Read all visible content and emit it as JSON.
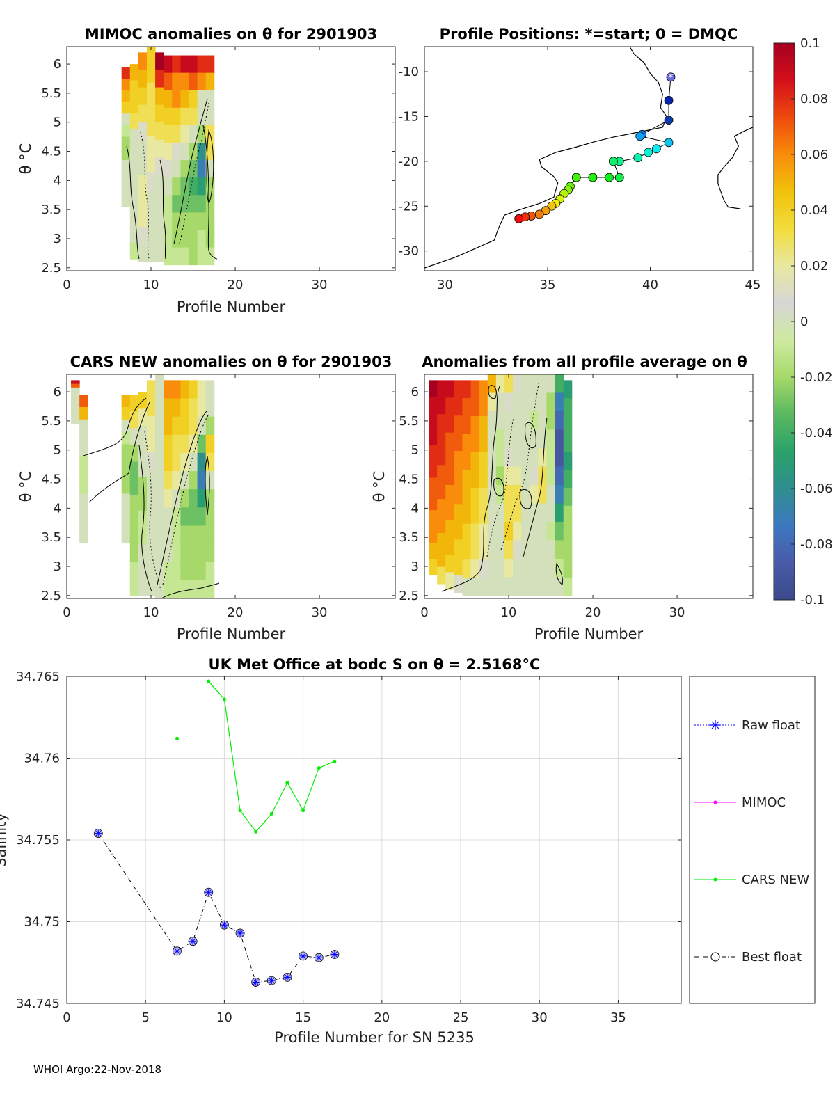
{
  "footer": "WHOI Argo:22-Nov-2018",
  "colorbar": {
    "ticks": [
      "0.1",
      "0.08",
      "0.06",
      "0.04",
      "0.02",
      "0",
      "-0.02",
      "-0.04",
      "-0.06",
      "-0.08",
      "-0.1"
    ],
    "stops": [
      "#a50021",
      "#d30f1a",
      "#ee4a0d",
      "#f98c0a",
      "#f0c20a",
      "#f2dc3c",
      "#e8e8a0",
      "#d6d6d6",
      "#cfeaa0",
      "#a6d96a",
      "#5ab860",
      "#2aa26a",
      "#2e8e8e",
      "#3d78c0",
      "#4a5aa8",
      "#3a4a8a"
    ]
  },
  "chart_data": [
    {
      "id": "mimoc",
      "type": "heatmap",
      "title": "MIMOC anomalies on θ  for 2901903",
      "xlabel": "Profile Number",
      "ylabel": "θ °C",
      "xlim": [
        0,
        39
      ],
      "ylim": [
        2.45,
        6.3
      ],
      "xticks": [
        "0",
        "10",
        "20",
        "30"
      ],
      "yticks": [
        "6",
        "5.5",
        "5",
        "4.5",
        "4",
        "3.5",
        "3",
        "2.5"
      ],
      "profiles": [
        7,
        8,
        9,
        10,
        11,
        12,
        13,
        14,
        15,
        16,
        17
      ],
      "theta_top": [
        5.95,
        6.0,
        6.2,
        6.3,
        6.2,
        6.15,
        6.15,
        6.15,
        6.15,
        6.15,
        6.15
      ],
      "theta_bottom": [
        3.55,
        2.65,
        2.6,
        2.6,
        2.6,
        2.55,
        2.55,
        2.55,
        2.55,
        2.55,
        2.55
      ],
      "anomaly_rows_top_to_bottom": [
        [
          0.08,
          0.05,
          0.06,
          0.04,
          0.1,
          0.09,
          0.08,
          0.09,
          0.09,
          0.08,
          0.08
        ],
        [
          0.06,
          0.04,
          0.05,
          0.04,
          0.08,
          0.07,
          0.06,
          0.06,
          0.07,
          0.06,
          0.05
        ],
        [
          0.05,
          0.04,
          0.04,
          0.03,
          0.05,
          0.05,
          0.06,
          0.05,
          0.04,
          0.0,
          0.0
        ],
        [
          0.04,
          0.03,
          0.03,
          0.03,
          0.04,
          0.04,
          0.04,
          0.03,
          0.03,
          0.0,
          0.0
        ],
        [
          0.0,
          0.0,
          0.01,
          0.03,
          0.03,
          0.03,
          0.03,
          0.02,
          0.0,
          -0.02,
          0.03
        ],
        [
          -0.01,
          0.0,
          0.0,
          0.02,
          0.02,
          0.02,
          0.01,
          0.0,
          -0.02,
          -0.06,
          0.03
        ],
        [
          -0.02,
          0.0,
          0.0,
          0.02,
          0.01,
          0.01,
          0.0,
          -0.02,
          -0.03,
          -0.07,
          0.0
        ],
        [
          -0.02,
          0.0,
          0.02,
          0.01,
          0.0,
          0.0,
          -0.02,
          -0.03,
          -0.04,
          -0.05,
          -0.02
        ],
        [
          0.0,
          0.0,
          0.02,
          0.0,
          0.0,
          -0.01,
          -0.03,
          -0.03,
          -0.03,
          -0.03,
          -0.02
        ],
        [
          0.0,
          0.0,
          0.02,
          0.0,
          0.0,
          -0.01,
          -0.02,
          -0.02,
          -0.02,
          -0.02,
          -0.02
        ],
        [
          0.0,
          0.0,
          0.01,
          0.0,
          0.0,
          -0.01,
          -0.02,
          -0.02,
          -0.02,
          -0.01,
          -0.02
        ],
        [
          0.0,
          -0.01,
          0.0,
          0.0,
          0.0,
          -0.01,
          -0.01,
          -0.01,
          -0.02,
          -0.01,
          -0.01
        ]
      ]
    },
    {
      "id": "positions",
      "type": "scatter",
      "title": "Profile Positions: *=start; 0 = DMQC",
      "xlim": [
        29,
        45
      ],
      "ylim": [
        -32.2,
        -7.2
      ],
      "xticks": [
        "30",
        "35",
        "40",
        "45"
      ],
      "yticks": [
        "-10",
        "-15",
        "-20",
        "-25",
        "-30"
      ],
      "lon": [
        41.0,
        40.9,
        40.9,
        39.6,
        39.5,
        40.9,
        40.3,
        39.9,
        39.4,
        38.5,
        38.2,
        38.5,
        38.0,
        37.2,
        36.4,
        36.1,
        36.0,
        35.8,
        35.6,
        35.4,
        35.2,
        34.9,
        34.6,
        34.2,
        33.9,
        33.6
      ],
      "lat": [
        -10.6,
        -13.2,
        -15.4,
        -17.0,
        -17.2,
        -17.9,
        -18.6,
        -19.0,
        -19.6,
        -20.0,
        -20.0,
        -21.8,
        -21.8,
        -21.8,
        -21.8,
        -22.8,
        -23.2,
        -23.6,
        -24.2,
        -24.7,
        -25.0,
        -25.5,
        -25.9,
        -26.1,
        -26.2,
        -26.4
      ],
      "coastlines": [
        [
          [
            29,
            -31.9
          ],
          [
            30.5,
            -30.7
          ],
          [
            31.5,
            -29.7
          ],
          [
            32.4,
            -28.8
          ],
          [
            32.6,
            -27.5
          ],
          [
            32.9,
            -26.0
          ],
          [
            33.5,
            -25.5
          ],
          [
            34.6,
            -24.7
          ],
          [
            35.3,
            -24.0
          ],
          [
            35.5,
            -22.4
          ],
          [
            35.3,
            -21.7
          ],
          [
            34.7,
            -20.6
          ],
          [
            34.6,
            -19.8
          ],
          [
            35.4,
            -19.0
          ],
          [
            36.4,
            -18.4
          ],
          [
            37.3,
            -17.8
          ],
          [
            38.2,
            -17.3
          ],
          [
            39.3,
            -16.8
          ],
          [
            40.6,
            -16.2
          ],
          [
            40.8,
            -15.0
          ],
          [
            40.5,
            -14.0
          ],
          [
            40.6,
            -12.5
          ],
          [
            40.4,
            -11.2
          ],
          [
            40.0,
            -10.2
          ],
          [
            39.7,
            -9.0
          ],
          [
            39.2,
            -8.0
          ],
          [
            39.0,
            -7.2
          ]
        ],
        [
          [
            44.4,
            -25.3
          ],
          [
            43.8,
            -25.1
          ],
          [
            43.6,
            -24.4
          ],
          [
            43.3,
            -22.5
          ],
          [
            43.3,
            -21.5
          ],
          [
            43.6,
            -20.6
          ],
          [
            44.0,
            -19.6
          ],
          [
            44.3,
            -18.3
          ],
          [
            44.1,
            -17.2
          ],
          [
            44.6,
            -16.6
          ],
          [
            45.0,
            -16.2
          ]
        ]
      ]
    },
    {
      "id": "cars",
      "type": "heatmap",
      "title": "CARS NEW anomalies on θ for 2901903",
      "xlabel": "Profile Number",
      "ylabel": "θ °C",
      "xlim": [
        0,
        39
      ],
      "ylim": [
        2.45,
        6.3
      ],
      "xticks": [
        "0",
        "10",
        "20",
        "30"
      ],
      "yticks": [
        "6",
        "5.5",
        "5",
        "4.5",
        "4",
        "3.5",
        "3",
        "2.5"
      ],
      "profiles": [
        1,
        2,
        7,
        8,
        9,
        10,
        11,
        12,
        13,
        14,
        15,
        16,
        17
      ],
      "theta_top": [
        6.2,
        5.95,
        5.95,
        5.95,
        6.0,
        6.2,
        6.3,
        6.2,
        6.2,
        6.2,
        6.2,
        6.2,
        6.2
      ],
      "theta_bottom": [
        5.45,
        3.4,
        3.4,
        2.5,
        2.5,
        2.5,
        2.45,
        2.45,
        2.45,
        2.45,
        2.45,
        2.45,
        2.45
      ],
      "anomaly_rows_top_to_bottom": [
        [
          0.09,
          0.07,
          0.05,
          0.04,
          0.04,
          0.03,
          0.0,
          0.06,
          0.06,
          0.05,
          0.04,
          0.02,
          0.0
        ],
        [
          0.07,
          0.05,
          0.04,
          0.03,
          0.02,
          0.03,
          0.0,
          0.05,
          0.05,
          0.04,
          0.03,
          0.02,
          0.0
        ],
        [
          0.0,
          0.0,
          0.0,
          0.0,
          0.0,
          0.02,
          0.0,
          0.05,
          0.04,
          0.04,
          0.03,
          0.0,
          -0.02
        ],
        [
          0.0,
          0.0,
          -0.01,
          -0.02,
          0.0,
          0.02,
          0.0,
          0.04,
          0.03,
          0.03,
          0.02,
          -0.03,
          0.04
        ],
        [
          0.0,
          0.0,
          -0.02,
          -0.03,
          0.0,
          0.01,
          0.0,
          0.04,
          0.03,
          0.02,
          0.0,
          -0.06,
          0.03
        ],
        [
          0.0,
          -0.01,
          -0.02,
          -0.03,
          -0.02,
          0.0,
          0.0,
          0.03,
          0.02,
          0.0,
          -0.02,
          -0.07,
          0.0
        ],
        [
          0.0,
          -0.01,
          -0.02,
          -0.02,
          -0.02,
          0.0,
          0.0,
          0.02,
          0.0,
          -0.02,
          -0.03,
          -0.05,
          -0.02
        ],
        [
          0.0,
          -0.01,
          -0.02,
          -0.02,
          -0.01,
          0.0,
          0.0,
          0.0,
          -0.01,
          -0.03,
          -0.03,
          -0.03,
          -0.02
        ],
        [
          0.0,
          0.0,
          0.0,
          -0.02,
          -0.01,
          0.0,
          0.0,
          0.0,
          -0.01,
          -0.02,
          -0.02,
          -0.02,
          -0.02
        ],
        [
          0.0,
          0.0,
          0.0,
          -0.02,
          0.0,
          0.0,
          0.0,
          0.0,
          -0.01,
          -0.02,
          -0.02,
          -0.02,
          -0.02
        ],
        [
          0.0,
          0.0,
          0.0,
          -0.01,
          0.0,
          0.0,
          0.0,
          -0.01,
          -0.01,
          -0.02,
          -0.02,
          -0.02,
          -0.01
        ],
        [
          0.0,
          0.0,
          0.0,
          -0.01,
          0.0,
          0.0,
          0.0,
          -0.01,
          -0.01,
          -0.01,
          -0.01,
          -0.01,
          -0.01
        ]
      ]
    },
    {
      "id": "allprofile",
      "type": "heatmap",
      "title": "Anomalies from all profile average on θ",
      "xlabel": "Profile Number",
      "ylabel": "θ °C",
      "xlim": [
        0,
        39
      ],
      "ylim": [
        2.45,
        6.3
      ],
      "xticks": [
        "0",
        "10",
        "20",
        "30"
      ],
      "yticks": [
        "6",
        "5.5",
        "5",
        "4.5",
        "4",
        "3.5",
        "3",
        "2.5"
      ],
      "profiles": [
        1,
        2,
        3,
        4,
        5,
        6,
        7,
        8,
        9,
        10,
        11,
        12,
        13,
        14,
        15,
        16,
        17
      ],
      "theta_top": [
        6.2,
        6.2,
        6.2,
        6.2,
        6.2,
        6.2,
        6.2,
        6.3,
        6.3,
        6.3,
        6.3,
        6.3,
        6.3,
        6.3,
        6.3,
        6.3,
        6.2
      ],
      "theta_bottom": [
        2.85,
        2.7,
        2.6,
        2.55,
        2.5,
        2.5,
        2.5,
        2.5,
        2.5,
        2.5,
        2.5,
        2.5,
        2.5,
        2.5,
        2.5,
        2.5,
        2.5
      ],
      "anomaly_rows_top_to_bottom": [
        [
          0.1,
          0.09,
          0.09,
          0.08,
          0.08,
          0.07,
          0.06,
          0.05,
          0.02,
          0.03,
          0.01,
          0.0,
          0.0,
          0.0,
          0.0,
          -0.04,
          -0.05
        ],
        [
          0.09,
          0.09,
          0.08,
          0.08,
          0.07,
          0.07,
          0.06,
          0.02,
          0.0,
          0.01,
          0.0,
          0.0,
          0.0,
          0.0,
          -0.02,
          -0.07,
          -0.04
        ],
        [
          0.09,
          0.08,
          0.08,
          0.07,
          0.07,
          0.06,
          0.05,
          0.0,
          0.0,
          0.0,
          0.0,
          0.0,
          -0.01,
          0.0,
          -0.02,
          -0.08,
          -0.04
        ],
        [
          0.09,
          0.08,
          0.07,
          0.07,
          0.06,
          0.06,
          0.05,
          0.0,
          -0.01,
          0.0,
          0.0,
          0.0,
          0.0,
          0.0,
          -0.01,
          -0.09,
          -0.04
        ],
        [
          0.08,
          0.08,
          0.07,
          0.06,
          0.06,
          0.05,
          0.04,
          0.0,
          -0.01,
          0.01,
          0.0,
          0.0,
          0.0,
          0.02,
          -0.01,
          -0.09,
          -0.05
        ],
        [
          0.08,
          0.07,
          0.07,
          0.06,
          0.05,
          0.05,
          0.04,
          0.0,
          -0.02,
          0.02,
          0.02,
          0.0,
          0.01,
          0.03,
          -0.01,
          -0.08,
          -0.04
        ],
        [
          0.07,
          0.07,
          0.06,
          0.06,
          0.05,
          0.04,
          0.03,
          0.0,
          -0.01,
          0.03,
          0.03,
          0.0,
          0.02,
          0.03,
          0.0,
          -0.07,
          -0.03
        ],
        [
          0.07,
          0.06,
          0.06,
          0.05,
          0.05,
          0.04,
          0.03,
          0.0,
          0.0,
          0.03,
          0.03,
          0.0,
          0.0,
          0.0,
          0.0,
          -0.05,
          -0.02
        ],
        [
          0.06,
          0.06,
          0.05,
          0.05,
          0.04,
          0.03,
          0.02,
          0.0,
          0.0,
          0.04,
          0.02,
          0.0,
          0.0,
          0.0,
          -0.01,
          -0.03,
          -0.02
        ],
        [
          0.06,
          0.05,
          0.05,
          0.04,
          0.04,
          0.03,
          0.02,
          0.0,
          0.0,
          0.03,
          0.01,
          0.0,
          0.0,
          0.0,
          0.0,
          -0.02,
          -0.02
        ],
        [
          0.05,
          0.05,
          0.04,
          0.04,
          0.03,
          0.02,
          0.01,
          0.0,
          0.0,
          0.02,
          0.0,
          0.0,
          0.0,
          0.0,
          0.0,
          -0.01,
          -0.02
        ],
        [
          0.04,
          0.03,
          0.02,
          0.01,
          0.0,
          0.0,
          0.0,
          0.0,
          0.0,
          0.0,
          0.0,
          0.0,
          0.0,
          0.0,
          0.0,
          0.0,
          -0.01
        ]
      ]
    },
    {
      "id": "salinity",
      "type": "line",
      "title": "UK Met Office at bodc S on θ = 2.5168°C",
      "xlabel": "Profile Number for SN 5235",
      "ylabel": "Salinity",
      "xlim": [
        0,
        39
      ],
      "ylim": [
        34.745,
        34.765
      ],
      "xticks": [
        "0",
        "5",
        "10",
        "15",
        "20",
        "25",
        "30",
        "35"
      ],
      "yticks": [
        "34.765",
        "34.76",
        "34.755",
        "34.75",
        "34.745"
      ],
      "grid": true,
      "legend": [
        "Raw float",
        "MIMOC",
        "CARS NEW",
        "Best float"
      ],
      "legend_location": "outside-right",
      "series": [
        {
          "name": "Raw float",
          "color": "#0000ff",
          "x": [
            2,
            7,
            8,
            9,
            10,
            11,
            12,
            13,
            14,
            15,
            16,
            17
          ],
          "y": [
            34.7554,
            34.7482,
            34.7488,
            34.7518,
            34.7498,
            34.7493,
            34.7463,
            34.7464,
            34.7466,
            34.7479,
            34.7478,
            34.748
          ]
        },
        {
          "name": "MIMOC",
          "color": "#ff00ff",
          "x": [],
          "y": []
        },
        {
          "name": "CARS NEW",
          "color": "#00ee00",
          "x": [
            7,
            9,
            10,
            11,
            12,
            13,
            14,
            15,
            16,
            17
          ],
          "y": [
            34.7612,
            34.7647,
            34.7636,
            34.7568,
            34.7555,
            34.7566,
            34.7585,
            34.7568,
            34.7594,
            34.7598
          ],
          "segments": [
            [
              9,
              10,
              11,
              12,
              13,
              14,
              15,
              16,
              17
            ]
          ]
        },
        {
          "name": "Best float",
          "color": "#000000",
          "x": [
            2,
            7,
            8,
            9,
            10,
            11,
            12,
            13,
            14,
            15,
            16,
            17
          ],
          "y": [
            34.7554,
            34.7482,
            34.7488,
            34.7518,
            34.7498,
            34.7493,
            34.7463,
            34.7464,
            34.7466,
            34.7479,
            34.7478,
            34.748
          ]
        }
      ]
    }
  ]
}
